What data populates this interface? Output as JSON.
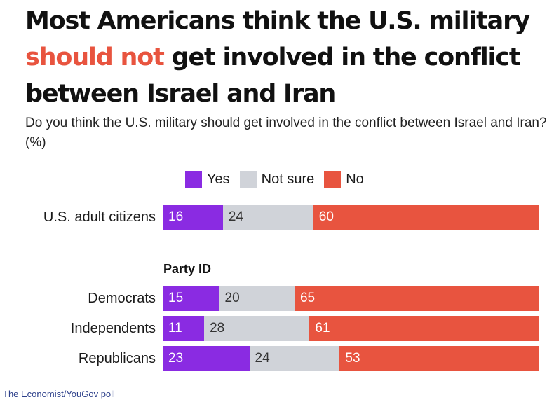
{
  "title": {
    "before": "Most Americans think the U.S. military ",
    "highlight": "should not",
    "after": " get involved in the conflict between Israel and Iran"
  },
  "subtitle": "Do you think the U.S. military should get involved in the conflict between Israel and Iran? (%)",
  "source": "The Economist/YouGov poll",
  "colors": {
    "yes": "#8a2be2",
    "not_sure": "#d0d3d9",
    "no": "#e8543f",
    "highlight": "#e8543f",
    "label_on_dark": "#ffffff",
    "label_on_light": "#333333"
  },
  "chart_data": {
    "type": "bar",
    "orientation": "horizontal",
    "stacked": true,
    "legend_position": "top",
    "legend": [
      "Yes",
      "Not sure",
      "No"
    ],
    "categories": [
      "U.S. adult citizens",
      "Democrats",
      "Independents",
      "Republicans"
    ],
    "group_label": "Party ID",
    "series": [
      {
        "name": "Yes",
        "values": [
          16,
          15,
          11,
          23
        ]
      },
      {
        "name": "Not sure",
        "values": [
          24,
          20,
          28,
          24
        ]
      },
      {
        "name": "No",
        "values": [
          60,
          65,
          61,
          53
        ]
      }
    ],
    "xlim": [
      0,
      100
    ],
    "grid": false
  }
}
